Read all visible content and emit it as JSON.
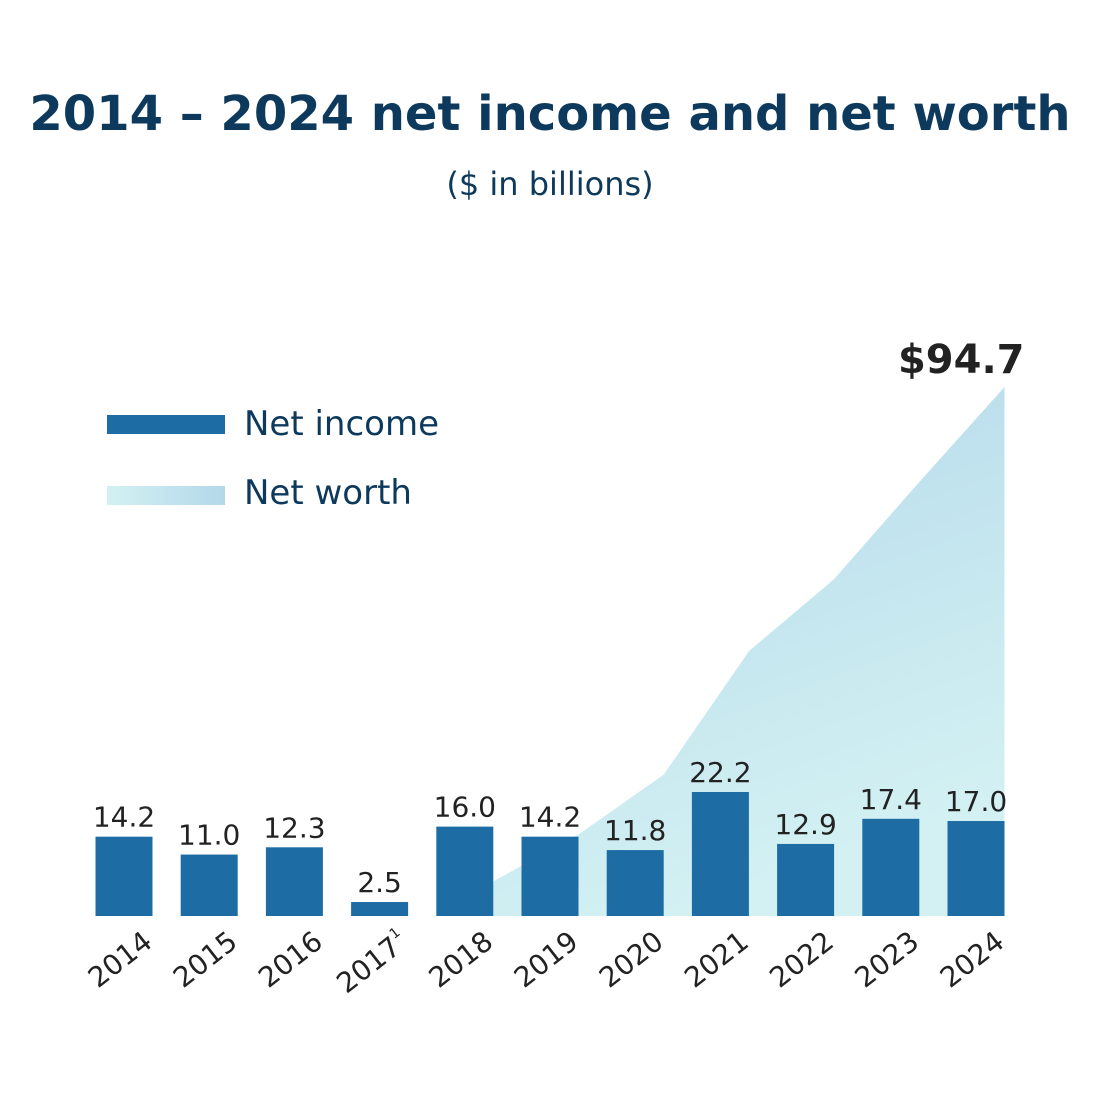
{
  "chart_data": {
    "type": "bar-area",
    "title": "2014 – 2024 net income and net worth",
    "subtitle": "($ in billions)",
    "categories": [
      "2014",
      "2015",
      "2016",
      "2017",
      "2018",
      "2019",
      "2020",
      "2021",
      "2022",
      "2023",
      "2024"
    ],
    "category_superscripts": [
      null,
      null,
      null,
      "1",
      null,
      null,
      null,
      null,
      null,
      null,
      null
    ],
    "ylim": [
      0,
      100
    ],
    "legend": "upper left",
    "series": [
      {
        "name": "Net income",
        "type": "bar",
        "color": "#1d6ca3",
        "values": [
          14.2,
          11.0,
          12.3,
          2.5,
          16.0,
          14.2,
          11.8,
          22.2,
          12.9,
          17.4,
          17.0
        ],
        "value_labels": [
          "14.2",
          "11.0",
          "12.3",
          "2.5",
          "16.0",
          "14.2",
          "11.8",
          "22.2",
          "12.9",
          "17.4",
          "17.0"
        ]
      },
      {
        "name": "Net worth",
        "type": "area",
        "color": "#b3d8ea",
        "color_light": "#d3f1f3",
        "values": [
          null,
          null,
          null,
          null,
          6.2,
          14.6,
          25.3,
          47.4,
          60.3,
          77.7,
          94.7
        ],
        "value_labels": [
          null,
          null,
          null,
          null,
          null,
          null,
          null,
          null,
          null,
          null,
          "$94.7"
        ]
      }
    ]
  }
}
